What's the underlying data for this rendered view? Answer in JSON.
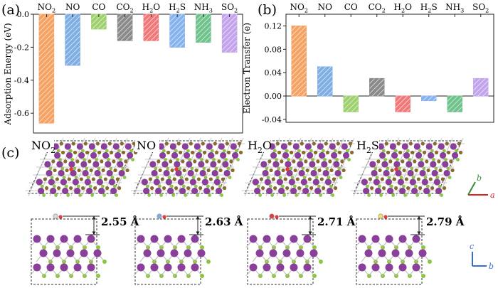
{
  "panel_labels": {
    "a": "(a)",
    "b": "(b)",
    "c": "(c)"
  },
  "gas_colors": {
    "NO2": "#f5a262",
    "NO": "#7faee3",
    "CO": "#9fd06f",
    "CO2": "#8a8a8a",
    "H2O": "#f07878",
    "H2S": "#86b2ee",
    "NH3": "#6fc28b",
    "SO2": "#c3a3ec"
  },
  "chart_data": [
    {
      "type": "bar",
      "panel": "(a)",
      "categories": [
        "NO2",
        "NO",
        "CO",
        "CO2",
        "H2O",
        "H2S",
        "NH3",
        "SO2"
      ],
      "category_labels": [
        {
          "main": "NO",
          "sub": "2"
        },
        {
          "main": "NO",
          "sub": ""
        },
        {
          "main": "CO",
          "sub": ""
        },
        {
          "main": "CO",
          "sub": "2"
        },
        {
          "main": "H",
          "sub": "2",
          "tail": "O"
        },
        {
          "main": "H",
          "sub": "2",
          "tail": "S"
        },
        {
          "main": "NH",
          "sub": "3"
        },
        {
          "main": "SO",
          "sub": "2"
        }
      ],
      "values": [
        -0.66,
        -0.31,
        -0.09,
        -0.16,
        -0.16,
        -0.2,
        -0.17,
        -0.23
      ],
      "ylabel": "Adsorption Energy (eV)",
      "ylim": [
        -0.72,
        0.0
      ],
      "yticks": [
        0.0,
        -0.2,
        -0.4,
        -0.6
      ],
      "ytick_labels": [
        "0.0",
        "-0.2",
        "-0.4",
        "-0.6"
      ],
      "category_axis": "top"
    },
    {
      "type": "bar",
      "panel": "(b)",
      "categories": [
        "NO2",
        "NO",
        "CO",
        "CO2",
        "H2O",
        "H2S",
        "NH3",
        "SO2"
      ],
      "category_labels": [
        {
          "main": "NO",
          "sub": "2"
        },
        {
          "main": "NO",
          "sub": ""
        },
        {
          "main": "CO",
          "sub": ""
        },
        {
          "main": "CO",
          "sub": "2"
        },
        {
          "main": "H",
          "sub": "2",
          "tail": "O"
        },
        {
          "main": "H",
          "sub": "2",
          "tail": "S"
        },
        {
          "main": "NH",
          "sub": "3"
        },
        {
          "main": "SO",
          "sub": "2"
        }
      ],
      "values": [
        0.12,
        0.05,
        -0.027,
        0.03,
        -0.027,
        -0.008,
        -0.027,
        0.03
      ],
      "ylabel": "Electron Transfer (e)",
      "ylim": [
        -0.045,
        0.14
      ],
      "yticks": [
        -0.04,
        0.0,
        0.04,
        0.08,
        0.12
      ],
      "ytick_labels": [
        "-0.04",
        "0.00",
        "0.04",
        "0.08",
        "0.12"
      ],
      "category_axis": "top"
    }
  ],
  "structures": {
    "top_labels": [
      {
        "main": "NO",
        "sub": "2",
        "tail": ""
      },
      {
        "main": "NO",
        "sub": "",
        "tail": ""
      },
      {
        "main": "H",
        "sub": "2",
        "tail": "O"
      },
      {
        "main": "H",
        "sub": "2",
        "tail": "S"
      }
    ],
    "distances": [
      "2.55 Å",
      "2.63 Å",
      "2.71 Å",
      "2.79 Å"
    ],
    "axes_top": {
      "b": "b",
      "a": "a"
    },
    "axes_side": {
      "c": "c",
      "b": "b"
    }
  }
}
